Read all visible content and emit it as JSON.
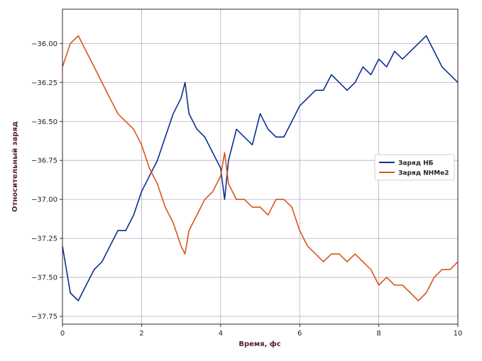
{
  "chart_data": {
    "type": "line",
    "xlabel": "Время, фс",
    "ylabel": "Относительный заряд",
    "xlim": [
      0,
      10
    ],
    "ylim": [
      -37.8,
      -35.78
    ],
    "x_ticks": [
      0,
      2,
      4,
      6,
      8,
      10
    ],
    "y_ticks": [
      -36.0,
      -36.25,
      -36.5,
      -36.75,
      -37.0,
      -37.25,
      -37.5,
      -37.75
    ],
    "x_tick_labels": [
      "0",
      "2",
      "4",
      "6",
      "8",
      "10"
    ],
    "y_tick_labels": [
      "−36.00",
      "−36.25",
      "−36.50",
      "−36.75",
      "−37.00",
      "−37.25",
      "−37.50",
      "−37.75"
    ],
    "grid": true,
    "legend_position": "right",
    "series": [
      {
        "name": "Заряд НБ",
        "color": "#0b2f8f",
        "x": [
          0.0,
          0.2,
          0.4,
          0.6,
          0.8,
          1.0,
          1.2,
          1.4,
          1.6,
          1.8,
          2.0,
          2.2,
          2.4,
          2.6,
          2.8,
          3.0,
          3.1,
          3.2,
          3.4,
          3.6,
          3.8,
          4.0,
          4.1,
          4.2,
          4.4,
          4.6,
          4.8,
          5.0,
          5.2,
          5.4,
          5.6,
          5.8,
          6.0,
          6.2,
          6.4,
          6.6,
          6.8,
          7.0,
          7.2,
          7.4,
          7.6,
          7.8,
          8.0,
          8.2,
          8.4,
          8.6,
          8.8,
          9.0,
          9.2,
          9.4,
          9.6,
          9.8,
          10.0
        ],
        "y": [
          -37.3,
          -37.6,
          -37.65,
          -37.55,
          -37.45,
          -37.4,
          -37.3,
          -37.2,
          -37.2,
          -37.1,
          -36.95,
          -36.85,
          -36.75,
          -36.6,
          -36.45,
          -36.35,
          -36.25,
          -36.45,
          -36.55,
          -36.6,
          -36.7,
          -36.8,
          -37.0,
          -36.75,
          -36.55,
          -36.6,
          -36.65,
          -36.45,
          -36.55,
          -36.6,
          -36.6,
          -36.5,
          -36.4,
          -36.35,
          -36.3,
          -36.3,
          -36.2,
          -36.25,
          -36.3,
          -36.25,
          -36.15,
          -36.2,
          -36.1,
          -36.15,
          -36.05,
          -36.1,
          -36.05,
          -36.0,
          -35.95,
          -36.05,
          -36.15,
          -36.2,
          -36.25
        ]
      },
      {
        "name": "Заряд NHMe2",
        "color": "#d9541a",
        "x": [
          0.0,
          0.2,
          0.4,
          0.6,
          0.8,
          1.0,
          1.2,
          1.4,
          1.6,
          1.8,
          2.0,
          2.2,
          2.4,
          2.6,
          2.8,
          3.0,
          3.1,
          3.2,
          3.4,
          3.6,
          3.8,
          4.0,
          4.1,
          4.2,
          4.4,
          4.6,
          4.8,
          5.0,
          5.2,
          5.4,
          5.6,
          5.8,
          6.0,
          6.2,
          6.4,
          6.6,
          6.8,
          7.0,
          7.2,
          7.4,
          7.6,
          7.8,
          8.0,
          8.2,
          8.4,
          8.6,
          8.8,
          9.0,
          9.2,
          9.4,
          9.6,
          9.8,
          10.0
        ],
        "y": [
          -36.15,
          -36.0,
          -35.95,
          -36.05,
          -36.15,
          -36.25,
          -36.35,
          -36.45,
          -36.5,
          -36.55,
          -36.65,
          -36.8,
          -36.9,
          -37.05,
          -37.15,
          -37.3,
          -37.35,
          -37.2,
          -37.1,
          -37.0,
          -36.95,
          -36.85,
          -36.7,
          -36.9,
          -37.0,
          -37.0,
          -37.05,
          -37.05,
          -37.1,
          -37.0,
          -37.0,
          -37.05,
          -37.2,
          -37.3,
          -37.35,
          -37.4,
          -37.35,
          -37.35,
          -37.4,
          -37.35,
          -37.4,
          -37.45,
          -37.55,
          -37.5,
          -37.55,
          -37.55,
          -37.6,
          -37.65,
          -37.6,
          -37.5,
          -37.45,
          -37.45,
          -37.4
        ]
      }
    ]
  }
}
